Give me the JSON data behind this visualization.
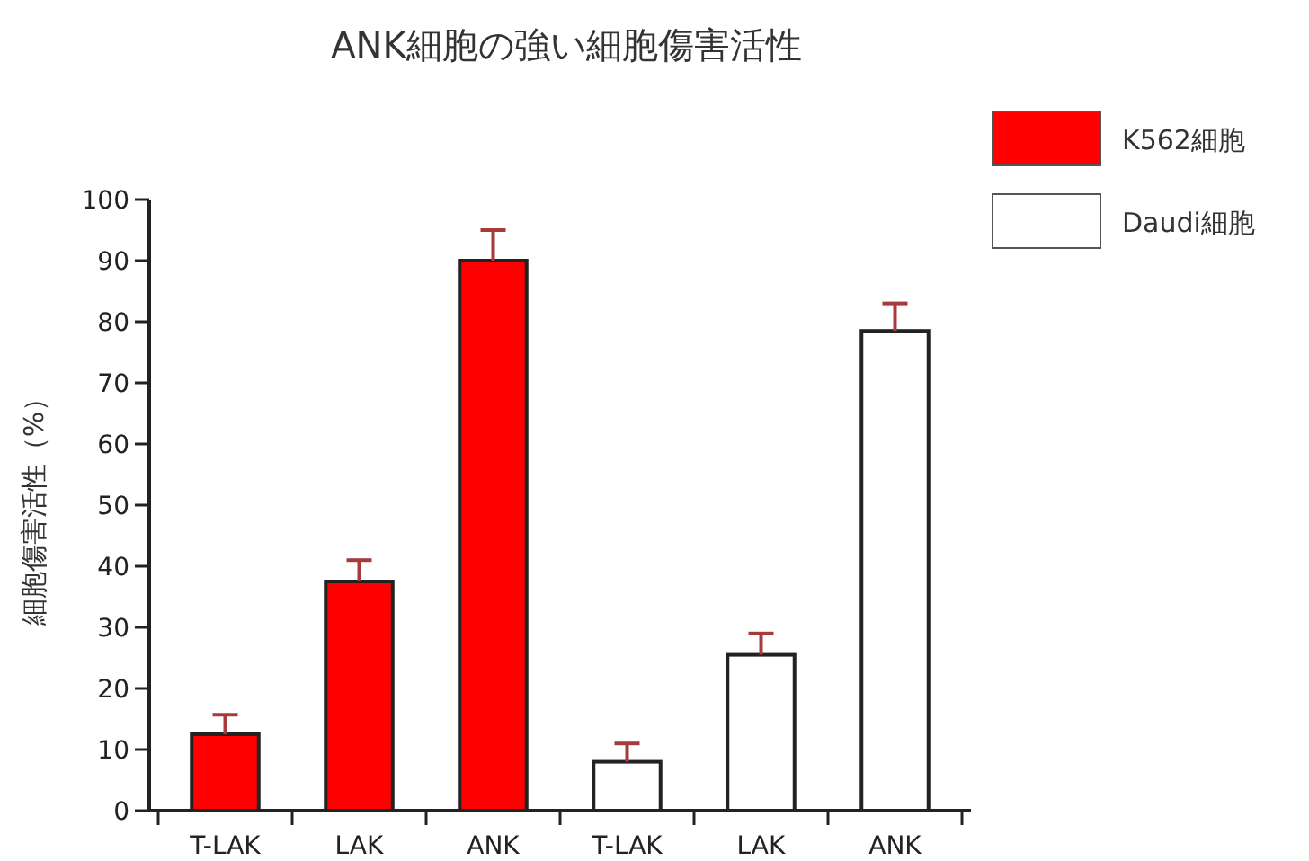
{
  "chart_data": {
    "type": "bar",
    "title": "ANK細胞の強い細胞傷害活性",
    "ylabel": "細胞傷害活性（%）",
    "categories": [
      "T-LAK",
      "LAK",
      "ANK",
      "T-LAK",
      "LAK",
      "ANK"
    ],
    "series": [
      {
        "name": "K562細胞",
        "color": "#ff0000",
        "values": [
          12.5,
          37.5,
          90,
          null,
          null,
          null
        ],
        "errors": [
          [
            12.5,
            15.7
          ],
          [
            37.5,
            41
          ],
          [
            90,
            95
          ],
          null,
          null,
          null
        ]
      },
      {
        "name": "Daudi細胞",
        "color": "#ffffff",
        "values": [
          null,
          null,
          null,
          8,
          25.5,
          78.5
        ],
        "errors": [
          null,
          null,
          null,
          [
            8,
            11
          ],
          [
            25.5,
            29
          ],
          [
            78.5,
            83
          ]
        ]
      }
    ],
    "ylim": [
      0,
      100
    ],
    "yticks": [
      0,
      10,
      20,
      30,
      40,
      50,
      60,
      70,
      80,
      90,
      100
    ],
    "legend": "top right",
    "grid": false
  }
}
